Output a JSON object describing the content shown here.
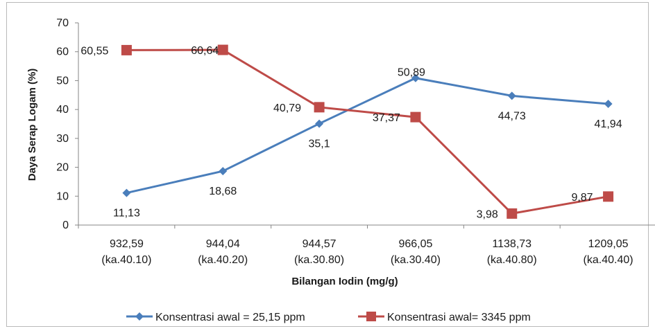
{
  "chart_data": {
    "type": "line",
    "title": "",
    "xlabel": "Bilangan Iodin (mg/g)",
    "ylabel": "Daya Serap Logam (%)",
    "ylim": [
      0,
      70
    ],
    "yticks": [
      "0",
      "10",
      "20",
      "30",
      "40",
      "50",
      "60",
      "70"
    ],
    "categories": [
      [
        "932,59",
        "(ka.40.10)"
      ],
      [
        "944,04",
        "(ka.40.20)"
      ],
      [
        "944,57",
        "(ka.30.80)"
      ],
      [
        "966,05",
        "(ka.30.40)"
      ],
      [
        "1138,73",
        "(ka.40.80)"
      ],
      [
        "1209,05",
        "(ka.40.40)"
      ]
    ],
    "legend_position": "bottom",
    "grid": false,
    "series": [
      {
        "name": "Konsentrasi awal = 25,15 ppm",
        "color": "#4a7ebb",
        "marker": "diamond",
        "values": [
          11.13,
          18.68,
          35.1,
          50.89,
          44.73,
          41.94
        ],
        "labels": [
          "11,13",
          "18,68",
          "35,1",
          "50,89",
          "44,73",
          "41,94"
        ]
      },
      {
        "name": "Konsentrasi awal= 3345 ppm",
        "color": "#be4b48",
        "marker": "square",
        "values": [
          60.55,
          60.64,
          40.79,
          37.37,
          3.98,
          9.87
        ],
        "labels": [
          "60,55",
          "60,64",
          "40,79",
          "37,37",
          "3,98",
          "9,87"
        ]
      }
    ]
  }
}
